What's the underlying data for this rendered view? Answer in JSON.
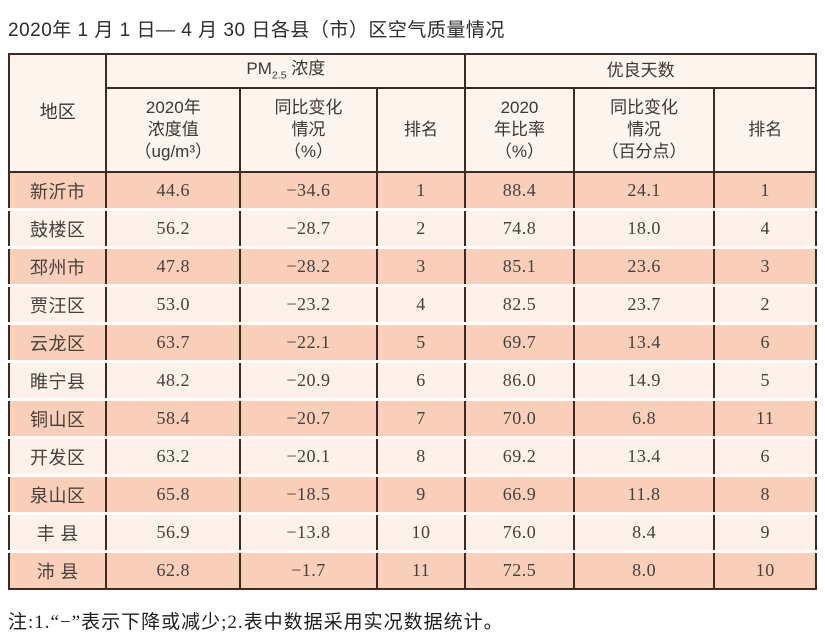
{
  "title": "2020年 1 月 1 日— 4 月 30 日各县（市）区空气质量情况",
  "note": "注:1.“−”表示下降或减少;2.表中数据采用实况数据统计。",
  "table": {
    "colors": {
      "border": "#3b2b25",
      "row_odd": "#f9cfb9",
      "row_even": "#fdf1ea",
      "header_bg": "#fdf5ed",
      "text": "#45403c"
    },
    "header": {
      "region": "地区",
      "pm_group": {
        "prefix": "PM",
        "sub": "2.5",
        "suffix": " 浓度"
      },
      "good_group": "优良天数",
      "pm_value": "2020年\n浓度值\n（ug/m³）",
      "pm_change": "同比变化\n情况\n（%）",
      "pm_rank": "排名",
      "good_ratio": "2020\n年比率\n（%）",
      "good_change": "同比变化\n情况\n（百分点）",
      "good_rank": "排名"
    },
    "rows": [
      {
        "region": "新沂市",
        "pm_value": "44.6",
        "pm_change": "−34.6",
        "pm_rank": "1",
        "good_ratio": "88.4",
        "good_change": "24.1",
        "good_rank": "1"
      },
      {
        "region": "鼓楼区",
        "pm_value": "56.2",
        "pm_change": "−28.7",
        "pm_rank": "2",
        "good_ratio": "74.8",
        "good_change": "18.0",
        "good_rank": "4"
      },
      {
        "region": "邳州市",
        "pm_value": "47.8",
        "pm_change": "−28.2",
        "pm_rank": "3",
        "good_ratio": "85.1",
        "good_change": "23.6",
        "good_rank": "3"
      },
      {
        "region": "贾汪区",
        "pm_value": "53.0",
        "pm_change": "−23.2",
        "pm_rank": "4",
        "good_ratio": "82.5",
        "good_change": "23.7",
        "good_rank": "2"
      },
      {
        "region": "云龙区",
        "pm_value": "63.7",
        "pm_change": "−22.1",
        "pm_rank": "5",
        "good_ratio": "69.7",
        "good_change": "13.4",
        "good_rank": "6"
      },
      {
        "region": "睢宁县",
        "pm_value": "48.2",
        "pm_change": "−20.9",
        "pm_rank": "6",
        "good_ratio": "86.0",
        "good_change": "14.9",
        "good_rank": "5"
      },
      {
        "region": "铜山区",
        "pm_value": "58.4",
        "pm_change": "−20.7",
        "pm_rank": "7",
        "good_ratio": "70.0",
        "good_change": "6.8",
        "good_rank": "11"
      },
      {
        "region": "开发区",
        "pm_value": "63.2",
        "pm_change": "−20.1",
        "pm_rank": "8",
        "good_ratio": "69.2",
        "good_change": "13.4",
        "good_rank": "6"
      },
      {
        "region": "泉山区",
        "pm_value": "65.8",
        "pm_change": "−18.5",
        "pm_rank": "9",
        "good_ratio": "66.9",
        "good_change": "11.8",
        "good_rank": "8"
      },
      {
        "region": "丰 县",
        "pm_value": "56.9",
        "pm_change": "−13.8",
        "pm_rank": "10",
        "good_ratio": "76.0",
        "good_change": "8.4",
        "good_rank": "9"
      },
      {
        "region": "沛 县",
        "pm_value": "62.8",
        "pm_change": "−1.7",
        "pm_rank": "11",
        "good_ratio": "72.5",
        "good_change": "8.0",
        "good_rank": "10"
      }
    ]
  }
}
